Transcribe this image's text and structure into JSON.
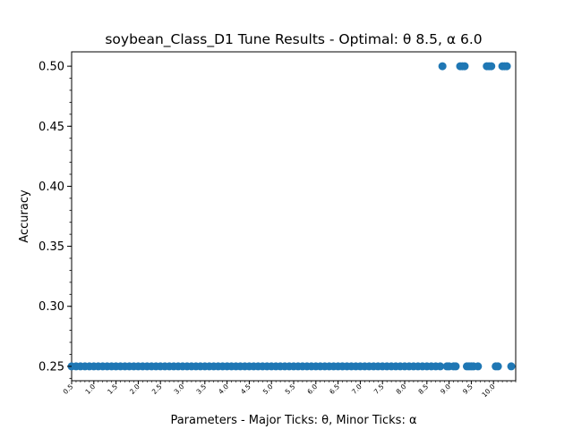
{
  "chart_data": {
    "type": "scatter",
    "title": "soybean_Class_D1 Tune Results - Optimal: θ 8.5, α 6.0",
    "xlabel": "Parameters - Major Ticks: θ, Minor Ticks: α",
    "ylabel": "Accuracy",
    "xlim": [
      0.5,
      10.5
    ],
    "ylim": [
      0.238,
      0.512
    ],
    "marker_color": "#1f77b4",
    "grid": false,
    "x_tick_labels": [
      "0.5",
      "1.0",
      "1.5",
      "2.0",
      "2.5",
      "3.0",
      "3.5",
      "4.0",
      "4.5",
      "5.0",
      "5.5",
      "6.0",
      "6.5",
      "7.0",
      "7.5",
      "8.0",
      "8.5",
      "9.0",
      "9.5",
      "10.0"
    ],
    "y_tick_labels": [
      "0.25",
      "0.30",
      "0.35",
      "0.40",
      "0.45",
      "0.50"
    ],
    "y_tick_values": [
      0.25,
      0.3,
      0.35,
      0.4,
      0.45,
      0.5
    ],
    "points_high": [
      8.85,
      9.25,
      9.3,
      9.35,
      9.85,
      9.9,
      9.95,
      10.2,
      10.25,
      10.3
    ],
    "points_low_range": [
      0.5,
      8.8
    ],
    "points_low_step": 0.1,
    "points_low_extra": [
      8.95,
      9.0,
      9.1,
      9.15,
      9.4,
      9.45,
      9.5,
      9.55,
      9.65,
      10.05,
      10.1,
      10.4
    ],
    "value_high": 0.5,
    "value_low": 0.25
  }
}
